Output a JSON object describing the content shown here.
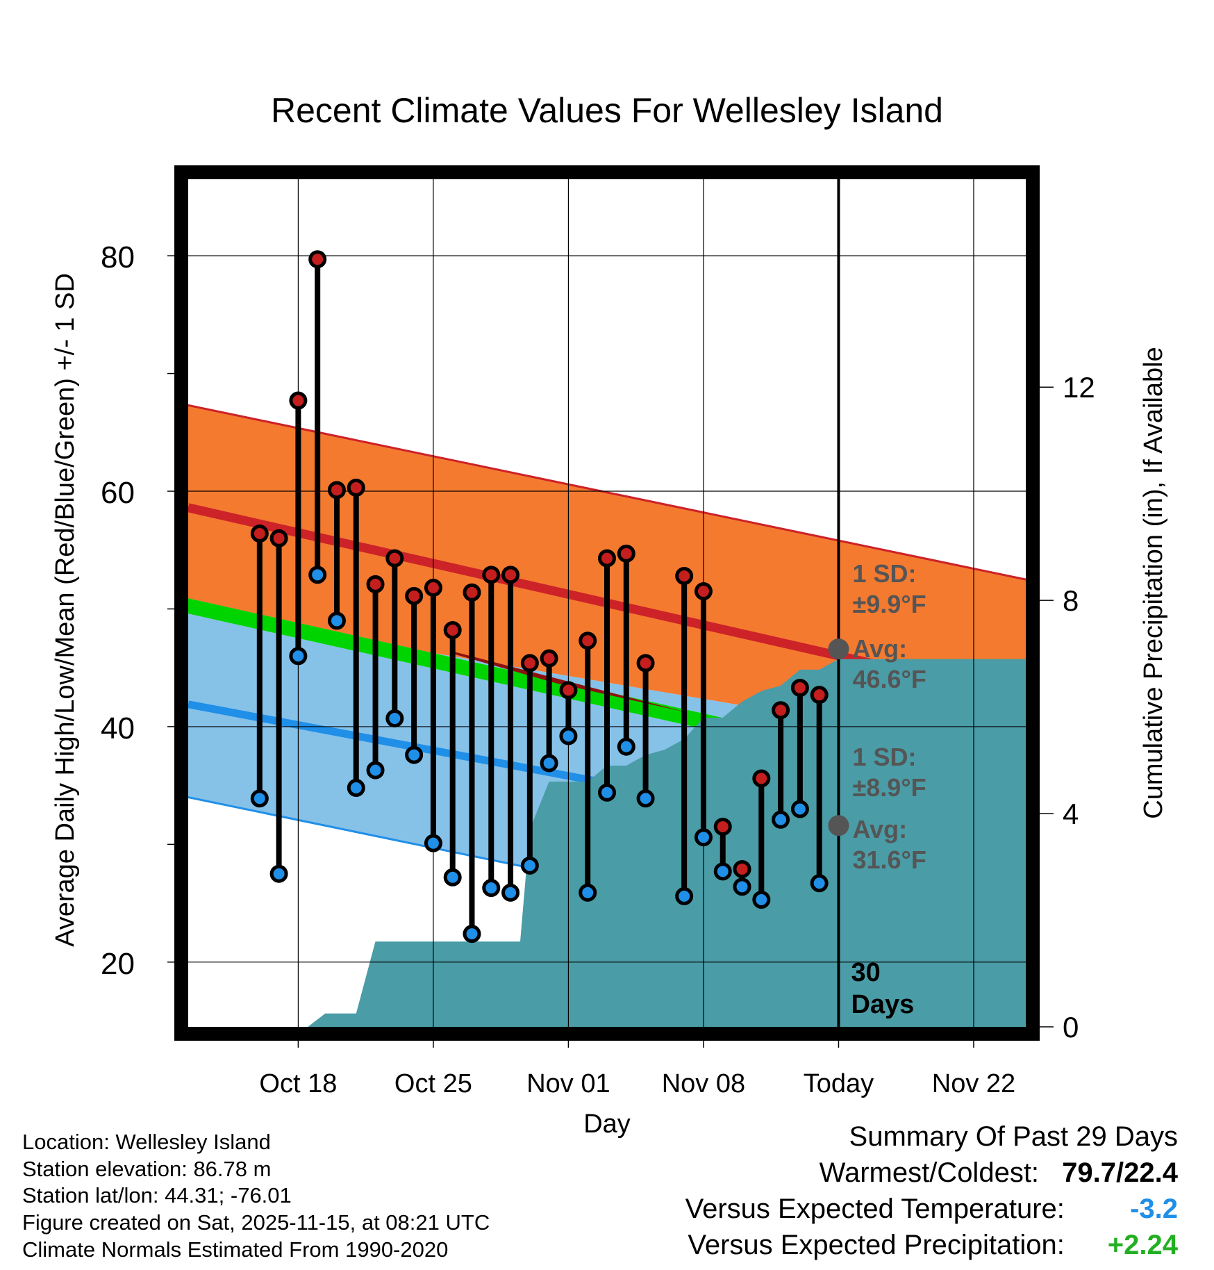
{
  "colors": {
    "high_point": "#c41e1e",
    "low_point": "#1f8fe8",
    "high_sd_band": "#f47a30",
    "low_sd_band": "#86c1e8",
    "avg_high_line": "#cc2228",
    "avg_low_line": "#1f8fe8",
    "mean_band": "#8e1111",
    "mean_line": "#00d400",
    "precip": "#4a9ca6",
    "annotation": "#555555",
    "temp_departure": "#1f8fe8",
    "precip_departure": "#22b022"
  },
  "chart_data": {
    "type": "climate_range",
    "title": "Recent Climate Values For Wellesley Island",
    "xlabel": "Day",
    "ylabel": "Average Daily High/Low/Mean (Red/Blue/Green) +/- 1 SD",
    "y2label": "Cumulative Precipitation (in), If Available",
    "ylim": [
      14.5,
      86.5
    ],
    "y2lim": [
      0,
      15.9
    ],
    "xlim_days": [
      -33.7,
      9.7
    ],
    "x_axis_note": "x = days relative to today (Nov 15)",
    "x_ticks": [
      {
        "day": -28,
        "label": "Oct 18"
      },
      {
        "day": -21,
        "label": "Oct 25"
      },
      {
        "day": -14,
        "label": "Nov 01"
      },
      {
        "day": -7,
        "label": "Nov 08"
      },
      {
        "day": 0,
        "label": "Today"
      },
      {
        "day": 7,
        "label": "Nov 22"
      }
    ],
    "y_ticks": [
      20,
      40,
      60,
      80
    ],
    "y2_ticks": [
      0,
      4,
      8,
      12
    ],
    "normals": {
      "days": [
        -33.7,
        9.7
      ],
      "avg_high": [
        58.6,
        42.4
      ],
      "high_sd_upper": [
        67.3,
        52.5
      ],
      "avg_low": [
        41.9,
        28.5
      ],
      "low_sd_upper": [
        49.8,
        37.7
      ],
      "low_sd_lower": [
        34.0,
        19.3
      ],
      "mean_upper": [
        50.9,
        35.0
      ],
      "mean_lower": [
        49.6,
        33.7
      ]
    },
    "observations": {
      "days": [
        -30,
        -29,
        -28,
        -27,
        -26,
        -25,
        -24,
        -23,
        -22,
        -21,
        -20,
        -19,
        -18,
        -17,
        -16,
        -15,
        -14,
        -13,
        -12,
        -11,
        -10,
        -8,
        -7,
        -6,
        -5,
        -4,
        -3,
        -2,
        -1
      ],
      "highs": [
        56.4,
        56.0,
        67.7,
        79.7,
        60.1,
        60.3,
        52.1,
        54.3,
        51.1,
        51.8,
        48.2,
        51.4,
        52.9,
        52.9,
        45.4,
        45.8,
        43.1,
        47.3,
        54.3,
        54.7,
        45.4,
        52.8,
        51.5,
        31.5,
        27.9,
        35.6,
        41.4,
        43.3,
        42.7
      ],
      "lows": [
        33.9,
        27.5,
        46.0,
        52.9,
        49.0,
        34.8,
        36.3,
        40.7,
        37.6,
        30.1,
        27.2,
        22.4,
        26.3,
        25.9,
        28.2,
        36.9,
        39.2,
        25.9,
        34.4,
        38.3,
        33.9,
        25.6,
        30.6,
        27.7,
        26.4,
        25.3,
        32.1,
        33.0,
        26.7
      ]
    },
    "precip_cumulative": {
      "days": [
        -33.7,
        -27.5,
        -26.6,
        -26.0,
        -25.0,
        -24.0,
        -23.0,
        -22.0,
        -21.0,
        -20.0,
        -19.0,
        -18.0,
        -17.0,
        -16.5,
        -16.0,
        -15.0,
        -14.0,
        -13.0,
        -12.0,
        -11.0,
        -10.0,
        -9.0,
        -8.0,
        -7.0,
        -6.0,
        -5.0,
        -4.0,
        -3.0,
        -2.0,
        -1.0,
        0.0,
        9.7
      ],
      "values": [
        0,
        0,
        0.25,
        0.25,
        0.25,
        1.6,
        1.6,
        1.6,
        1.6,
        1.6,
        1.6,
        1.6,
        1.6,
        1.6,
        3.7,
        4.6,
        4.6,
        4.6,
        4.9,
        4.9,
        5.1,
        5.2,
        5.4,
        5.8,
        5.8,
        6.1,
        6.3,
        6.4,
        6.7,
        6.7,
        6.9,
        6.9
      ]
    },
    "annotations": {
      "high_sd": {
        "label": "1 SD:",
        "value": "±9.9°F"
      },
      "high_avg": {
        "label": "Avg:",
        "value": "46.6°F"
      },
      "low_sd": {
        "label": "1 SD:",
        "value": "±8.9°F"
      },
      "low_avg": {
        "label": "Avg:",
        "value": "31.6°F"
      },
      "window": {
        "line1": "30",
        "line2": "Days"
      },
      "today_avg_high": 46.6,
      "today_avg_low": 31.6
    }
  },
  "info": {
    "location": "Location: Wellesley Island",
    "elevation": "Station elevation: 86.78 m",
    "latlon": "Station lat/lon: 44.31; -76.01",
    "created": "Figure created on Sat, 2025-11-15, at 08:21 UTC",
    "normals": "Climate Normals Estimated From 1990-2020"
  },
  "summary": {
    "heading": "Summary Of Past 29 Days",
    "warm_cold_label": "Warmest/Coldest:",
    "warm_cold_value": "79.7/22.4",
    "temp_label": "Versus Expected Temperature:",
    "temp_value": "-3.2",
    "precip_label": "Versus Expected Precipitation:",
    "precip_value": "+2.24"
  }
}
